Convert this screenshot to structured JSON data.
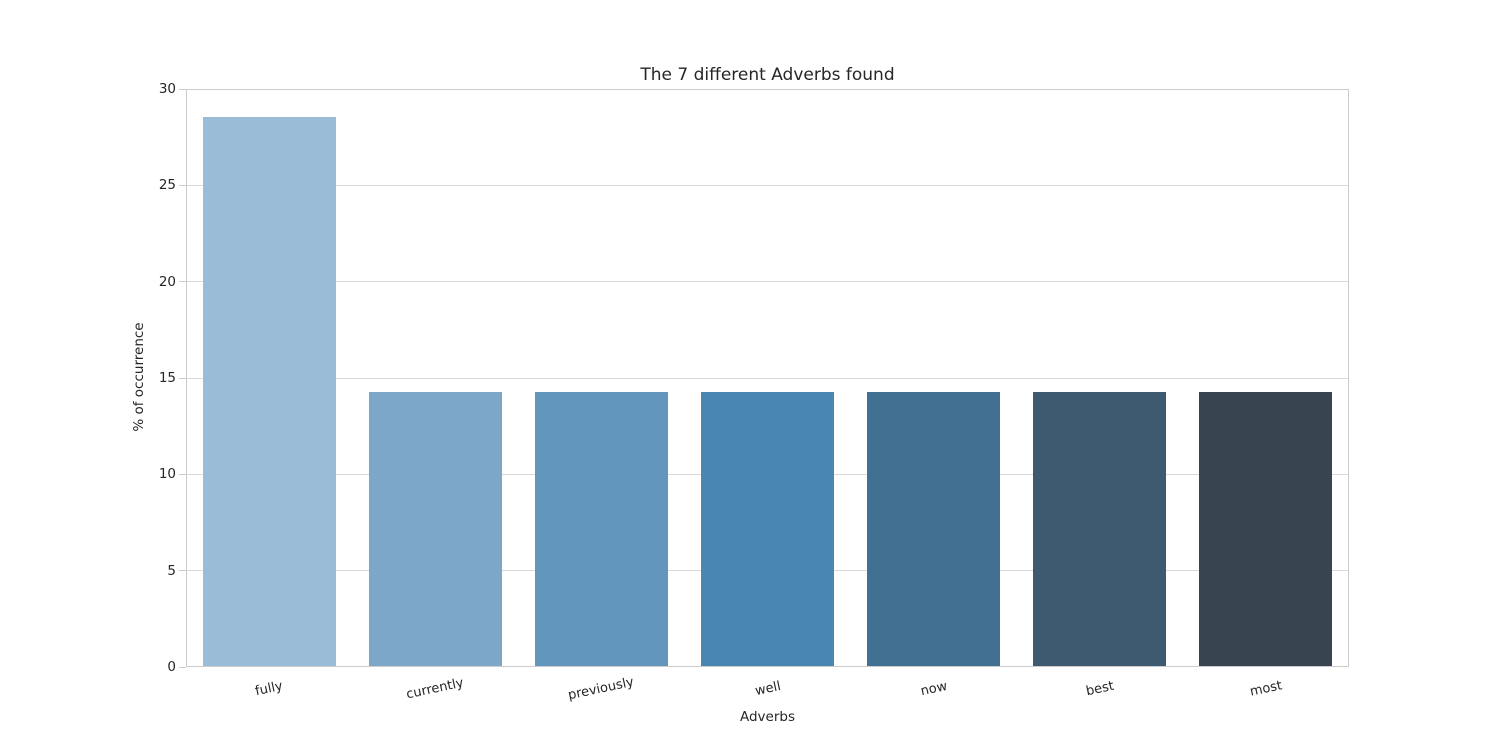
{
  "figure": {
    "background": "#ffffff",
    "text_color": "#262626",
    "grid_color": "#d9d9d9",
    "spine_color": "#cccccc"
  },
  "chart_data": {
    "type": "bar",
    "title": "The 7 different Adverbs found",
    "xlabel": "Adverbs",
    "ylabel": "% of occurrence",
    "categories": [
      "fully",
      "currently",
      "previously",
      "well",
      "now",
      "best",
      "most"
    ],
    "values": [
      28.57,
      14.29,
      14.29,
      14.29,
      14.29,
      14.29,
      14.29
    ],
    "bar_colors": [
      "#9abcd7",
      "#7da7c9",
      "#6396bc",
      "#4a86b2",
      "#427092",
      "#3d5a70",
      "#384550"
    ],
    "ylim": [
      0,
      30
    ],
    "yticks": [
      0,
      5,
      10,
      15,
      20,
      25,
      30
    ],
    "ytick_labels": [
      "0",
      "5",
      "10",
      "15",
      "20",
      "25",
      "30"
    ],
    "bar_width_fraction": 0.8,
    "xtick_rotation_deg": 12,
    "grid": true,
    "legend": null
  }
}
